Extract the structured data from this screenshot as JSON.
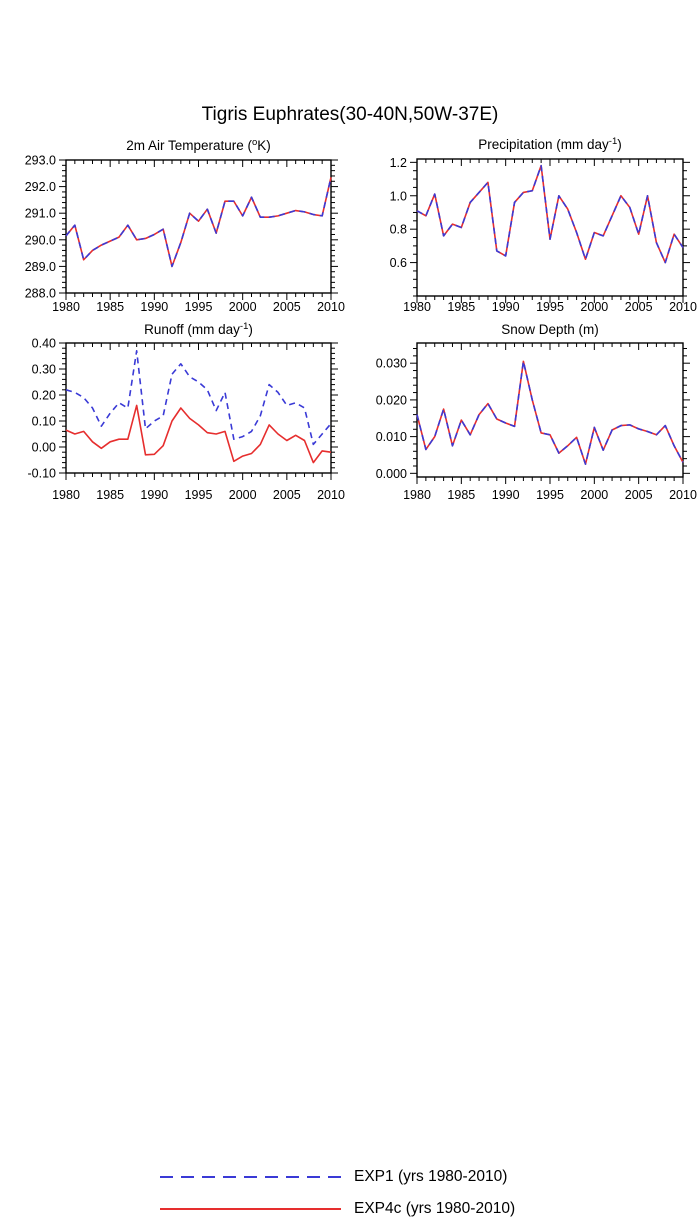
{
  "title": "Tigris Euphrates(30-40N,50W-37E)",
  "colors": {
    "exp1": "#3a3ad6",
    "exp4c": "#e62e2e",
    "axis": "#000000",
    "background": "#ffffff"
  },
  "legend": [
    {
      "label": "EXP1 (yrs 1980-2010)",
      "series": "exp1",
      "line": "dashed"
    },
    {
      "label": "EXP4c (yrs 1980-2010)",
      "series": "exp4c",
      "line": "solid"
    }
  ],
  "years": [
    1980,
    1981,
    1982,
    1983,
    1984,
    1985,
    1986,
    1987,
    1988,
    1989,
    1990,
    1991,
    1992,
    1993,
    1994,
    1995,
    1996,
    1997,
    1998,
    1999,
    2000,
    2001,
    2002,
    2003,
    2004,
    2005,
    2006,
    2007,
    2008,
    2009,
    2010
  ],
  "chart_data": [
    {
      "id": "air-temperature",
      "type": "line",
      "title_parts": [
        {
          "text": "2m Air Temperature ("
        },
        {
          "text": "o",
          "sup": true
        },
        {
          "text": "K)"
        }
      ],
      "x_start": 1980,
      "x_end": 2010,
      "xticks": [
        1980,
        1985,
        1990,
        1995,
        2000,
        2005,
        2010
      ],
      "xtick_labels": [
        "1980",
        "1985",
        "1990",
        "1995",
        "2000",
        "2005",
        "2010"
      ],
      "x_minor_step": 1,
      "ylim": [
        288.0,
        293.0
      ],
      "yticks": [
        288.0,
        289.0,
        290.0,
        291.0,
        292.0,
        293.0
      ],
      "ytick_labels": [
        "288.0",
        "289.0",
        "290.0",
        "291.0",
        "292.0",
        "293.0"
      ],
      "y_minor_step": 0.2,
      "series": [
        {
          "name": "EXP1",
          "color": "exp1",
          "dash": true,
          "values": [
            290.15,
            290.55,
            289.25,
            289.6,
            289.8,
            289.95,
            290.1,
            290.55,
            290.0,
            290.05,
            290.2,
            290.4,
            289.0,
            289.9,
            291.0,
            290.7,
            291.15,
            290.25,
            291.45,
            291.45,
            290.9,
            291.6,
            290.85,
            290.85,
            290.9,
            291.0,
            291.1,
            291.05,
            290.95,
            290.9,
            292.35
          ]
        },
        {
          "name": "EXP4c",
          "color": "exp4c",
          "dash": false,
          "values": [
            290.15,
            290.55,
            289.25,
            289.6,
            289.8,
            289.95,
            290.1,
            290.55,
            290.0,
            290.05,
            290.2,
            290.4,
            289.0,
            289.9,
            291.0,
            290.7,
            291.15,
            290.25,
            291.45,
            291.45,
            290.9,
            291.6,
            290.85,
            290.85,
            290.9,
            291.0,
            291.1,
            291.05,
            290.95,
            290.9,
            292.35
          ]
        }
      ]
    },
    {
      "id": "precipitation",
      "type": "line",
      "title_parts": [
        {
          "text": "Precipitation (mm day"
        },
        {
          "text": "-1",
          "sup": true
        },
        {
          "text": ")"
        }
      ],
      "x_start": 1980,
      "x_end": 2010,
      "xticks": [
        1980,
        1985,
        1990,
        1995,
        2000,
        2005,
        2010
      ],
      "xtick_labels": [
        "1980",
        "1985",
        "1990",
        "1995",
        "2000",
        "2005",
        "2010"
      ],
      "x_minor_step": 1,
      "ylim": [
        0.4,
        1.22
      ],
      "yticks": [
        0.6,
        0.8,
        1.0,
        1.2
      ],
      "ytick_labels": [
        "0.6",
        "0.8",
        "1.0",
        "1.2"
      ],
      "y_minor_step": 0.05,
      "series": [
        {
          "name": "EXP1",
          "color": "exp1",
          "dash": true,
          "values": [
            0.91,
            0.88,
            1.01,
            0.76,
            0.83,
            0.81,
            0.96,
            1.02,
            1.08,
            0.67,
            0.64,
            0.96,
            1.02,
            1.03,
            1.18,
            0.74,
            1.0,
            0.92,
            0.78,
            0.62,
            0.78,
            0.76,
            0.88,
            1.0,
            0.93,
            0.77,
            1.0,
            0.72,
            0.6,
            0.77,
            0.69
          ]
        },
        {
          "name": "EXP4c",
          "color": "exp4c",
          "dash": false,
          "values": [
            0.91,
            0.88,
            1.01,
            0.76,
            0.83,
            0.81,
            0.96,
            1.02,
            1.08,
            0.67,
            0.64,
            0.96,
            1.02,
            1.03,
            1.18,
            0.74,
            1.0,
            0.92,
            0.78,
            0.62,
            0.78,
            0.76,
            0.88,
            1.0,
            0.93,
            0.77,
            1.0,
            0.72,
            0.6,
            0.77,
            0.69
          ]
        }
      ]
    },
    {
      "id": "runoff",
      "type": "line",
      "title_parts": [
        {
          "text": "Runoff (mm day"
        },
        {
          "text": "-1",
          "sup": true
        },
        {
          "text": ")"
        }
      ],
      "x_start": 1980,
      "x_end": 2010,
      "xticks": [
        1980,
        1985,
        1990,
        1995,
        2000,
        2005,
        2010
      ],
      "xtick_labels": [
        "1980",
        "1985",
        "1990",
        "1995",
        "2000",
        "2005",
        "2010"
      ],
      "x_minor_step": 1,
      "ylim": [
        -0.1,
        0.4
      ],
      "yticks": [
        -0.1,
        0.0,
        0.1,
        0.2,
        0.3,
        0.4
      ],
      "ytick_labels": [
        "-0.10",
        "0.00",
        "0.10",
        "0.20",
        "0.30",
        "0.40"
      ],
      "y_minor_step": 0.02,
      "series": [
        {
          "name": "EXP1",
          "color": "exp1",
          "dash": true,
          "values": [
            0.22,
            0.21,
            0.19,
            0.15,
            0.08,
            0.13,
            0.17,
            0.15,
            0.37,
            0.07,
            0.1,
            0.12,
            0.28,
            0.32,
            0.27,
            0.25,
            0.22,
            0.14,
            0.21,
            0.03,
            0.04,
            0.06,
            0.12,
            0.24,
            0.21,
            0.16,
            0.17,
            0.15,
            0.01,
            0.05,
            0.09
          ]
        },
        {
          "name": "EXP4c",
          "color": "exp4c",
          "dash": false,
          "values": [
            0.065,
            0.05,
            0.06,
            0.02,
            -0.005,
            0.02,
            0.03,
            0.03,
            0.16,
            -0.03,
            -0.028,
            0.005,
            0.1,
            0.15,
            0.11,
            0.085,
            0.055,
            0.05,
            0.06,
            -0.055,
            -0.035,
            -0.025,
            0.01,
            0.085,
            0.05,
            0.025,
            0.045,
            0.025,
            -0.06,
            -0.015,
            -0.02
          ]
        }
      ]
    },
    {
      "id": "snow-depth",
      "type": "line",
      "title_parts": [
        {
          "text": "Snow Depth (m)"
        }
      ],
      "x_start": 1980,
      "x_end": 2010,
      "xticks": [
        1980,
        1985,
        1990,
        1995,
        2000,
        2005,
        2010
      ],
      "xtick_labels": [
        "1980",
        "1985",
        "1990",
        "1995",
        "2000",
        "2005",
        "2010"
      ],
      "x_minor_step": 1,
      "ylim": [
        -0.001,
        0.0355
      ],
      "yticks": [
        0.0,
        0.01,
        0.02,
        0.03
      ],
      "ytick_labels": [
        "0.000",
        "0.010",
        "0.020",
        "0.030"
      ],
      "y_minor_step": 0.002,
      "series": [
        {
          "name": "EXP1",
          "color": "exp1",
          "dash": true,
          "values": [
            0.016,
            0.0065,
            0.01,
            0.0175,
            0.0075,
            0.0145,
            0.0105,
            0.016,
            0.019,
            0.0148,
            0.0137,
            0.0128,
            0.0305,
            0.02,
            0.011,
            0.0105,
            0.0055,
            0.0075,
            0.0098,
            0.0025,
            0.0125,
            0.0063,
            0.0118,
            0.013,
            0.0132,
            0.0121,
            0.0114,
            0.0105,
            0.013,
            0.0075,
            0.003
          ]
        },
        {
          "name": "EXP4c",
          "color": "exp4c",
          "dash": false,
          "values": [
            0.016,
            0.0065,
            0.01,
            0.0175,
            0.0075,
            0.0145,
            0.0105,
            0.016,
            0.019,
            0.0148,
            0.0137,
            0.0128,
            0.0305,
            0.02,
            0.011,
            0.0105,
            0.0055,
            0.0075,
            0.0098,
            0.0025,
            0.0125,
            0.0063,
            0.0118,
            0.013,
            0.0132,
            0.0121,
            0.0114,
            0.0105,
            0.013,
            0.0075,
            0.003
          ]
        }
      ]
    }
  ]
}
